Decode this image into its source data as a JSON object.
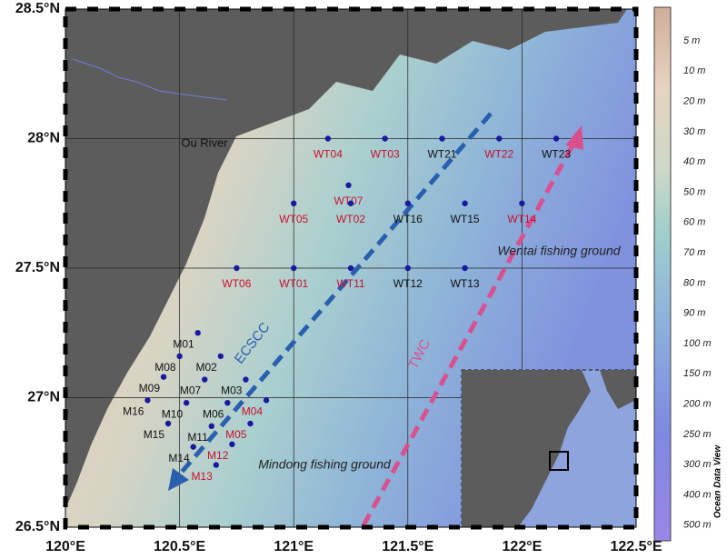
{
  "map": {
    "lonticks": [
      {
        "value": 120,
        "label": "120°E"
      },
      {
        "value": 120.5,
        "label": "120.5°E"
      },
      {
        "value": 121,
        "label": "121°E"
      },
      {
        "value": 121.5,
        "label": "121.5°E"
      },
      {
        "value": 122,
        "label": "122°E"
      },
      {
        "value": 122.5,
        "label": "122.5°E"
      }
    ],
    "latticks": [
      {
        "value": 26.5,
        "label": "26.5°N"
      },
      {
        "value": 27,
        "label": "27°N"
      },
      {
        "value": 27.5,
        "label": "27.5°N"
      },
      {
        "value": 28,
        "label": "28°N"
      },
      {
        "value": 28.5,
        "label": "28.5°N"
      }
    ],
    "lonlim": [
      120,
      122.5
    ],
    "latlim": [
      26.5,
      28.5
    ],
    "stations": [
      {
        "name": "WT04",
        "lon": 121.15,
        "lat": 28.0,
        "color": "#c8102e"
      },
      {
        "name": "WT03",
        "lon": 121.4,
        "lat": 28.0,
        "color": "#c8102e"
      },
      {
        "name": "WT21",
        "lon": 121.65,
        "lat": 28.0,
        "color": "#111111"
      },
      {
        "name": "WT22",
        "lon": 121.9,
        "lat": 28.0,
        "color": "#c8102e"
      },
      {
        "name": "WT23",
        "lon": 122.15,
        "lat": 28.0,
        "color": "#111111"
      },
      {
        "name": "WT07",
        "lon": 121.24,
        "lat": 27.82,
        "color": "#c8102e"
      },
      {
        "name": "WT05",
        "lon": 121.0,
        "lat": 27.75,
        "color": "#c8102e"
      },
      {
        "name": "WT02",
        "lon": 121.25,
        "lat": 27.75,
        "color": "#c8102e"
      },
      {
        "name": "WT16",
        "lon": 121.5,
        "lat": 27.75,
        "color": "#111111"
      },
      {
        "name": "WT15",
        "lon": 121.75,
        "lat": 27.75,
        "color": "#111111"
      },
      {
        "name": "WT14",
        "lon": 122.0,
        "lat": 27.75,
        "color": "#c8102e"
      },
      {
        "name": "WT06",
        "lon": 120.75,
        "lat": 27.5,
        "color": "#c8102e"
      },
      {
        "name": "WT01",
        "lon": 121.0,
        "lat": 27.5,
        "color": "#c8102e"
      },
      {
        "name": "WT11",
        "lon": 121.25,
        "lat": 27.5,
        "color": "#c8102e"
      },
      {
        "name": "WT12",
        "lon": 121.5,
        "lat": 27.5,
        "color": "#111111"
      },
      {
        "name": "WT13",
        "lon": 121.75,
        "lat": 27.5,
        "color": "#111111"
      },
      {
        "name": "M01",
        "lon": 120.58,
        "lat": 27.25,
        "color": "#111111"
      },
      {
        "name": "M08",
        "lon": 120.5,
        "lat": 27.16,
        "color": "#111111"
      },
      {
        "name": "M02",
        "lon": 120.68,
        "lat": 27.16,
        "color": "#111111"
      },
      {
        "name": "M09",
        "lon": 120.43,
        "lat": 27.08,
        "color": "#111111"
      },
      {
        "name": "M07",
        "lon": 120.61,
        "lat": 27.07,
        "color": "#111111"
      },
      {
        "name": "M03",
        "lon": 120.79,
        "lat": 27.07,
        "color": "#111111"
      },
      {
        "name": "M16",
        "lon": 120.36,
        "lat": 26.99,
        "color": "#111111"
      },
      {
        "name": "M10",
        "lon": 120.53,
        "lat": 26.98,
        "color": "#111111"
      },
      {
        "name": "M06",
        "lon": 120.71,
        "lat": 26.98,
        "color": "#111111"
      },
      {
        "name": "M04",
        "lon": 120.88,
        "lat": 26.99,
        "color": "#c8102e"
      },
      {
        "name": "M15",
        "lon": 120.45,
        "lat": 26.9,
        "color": "#111111"
      },
      {
        "name": "M11",
        "lon": 120.64,
        "lat": 26.89,
        "color": "#111111"
      },
      {
        "name": "M05",
        "lon": 120.81,
        "lat": 26.9,
        "color": "#c8102e"
      },
      {
        "name": "M14",
        "lon": 120.56,
        "lat": 26.81,
        "color": "#111111"
      },
      {
        "name": "M12",
        "lon": 120.73,
        "lat": 26.82,
        "color": "#c8102e"
      },
      {
        "name": "M13",
        "lon": 120.66,
        "lat": 26.74,
        "color": "#c8102e"
      }
    ],
    "annotations": {
      "river": "Ou River",
      "ecscc": "ECSCC",
      "twc": "TWC",
      "wentai": "Wentai fishing ground",
      "mindong": "Mindong fishing ground"
    },
    "colorbar": {
      "labels": [
        "5 m",
        "10 m",
        "20 m",
        "30 m",
        "40 m",
        "50 m",
        "60 m",
        "70 m",
        "80 m",
        "90 m",
        "100 m",
        "150 m",
        "200 m",
        "250 m",
        "300 m",
        "400 m",
        "500 m"
      ],
      "credit": "Ocean Data View"
    }
  }
}
